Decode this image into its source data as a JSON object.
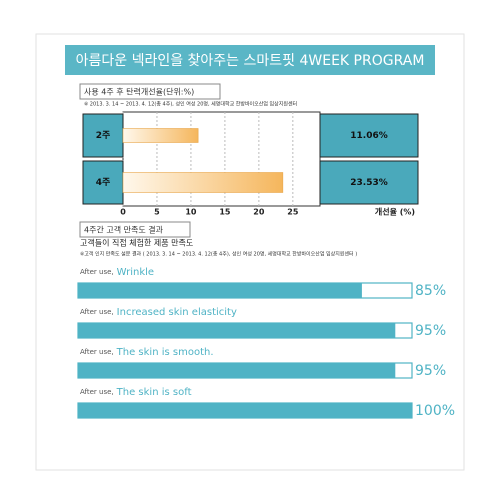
{
  "header": {
    "title": "아름다운 넥라인을 찾아주는 스마트핏 4WEEK PROGRAM"
  },
  "chart_data": [
    {
      "type": "bar",
      "orientation": "horizontal",
      "title": "사용 4주 후 탄력개선율(단위:%)",
      "note": "※ 2013. 3. 14 ~ 2013. 4. 12(총 4주), 성인 여성 20명, 세명대학교 한방바이오산업 임상지원센터",
      "categories": [
        "2주",
        "4주"
      ],
      "values": [
        11.06,
        23.53
      ],
      "value_labels": [
        "11.06%",
        "23.53%"
      ],
      "color": "#f5b65c",
      "xlim": [
        0,
        29
      ],
      "xticks": [
        0,
        5,
        10,
        15,
        20,
        25
      ],
      "xlabel": "개선율 (%)",
      "grid": true
    },
    {
      "type": "bar",
      "orientation": "horizontal",
      "title": "4주간 고객 만족도 결과",
      "subtitle": "고객들이 직접 체험한 제품 만족도",
      "note": "※고객 인지 만족도 설문 결과 ( 2013. 3. 14 ~ 2013. 4. 12(총 4주), 성인 여성 20명, 세명대학교 한방바이오산업 임상지원센터 )",
      "prefix": "After use,",
      "categories": [
        "Wrinkle",
        "Increased skin elasticity",
        "The skin is smooth.",
        "The skin is soft"
      ],
      "values": [
        85,
        95,
        95,
        100
      ],
      "value_labels": [
        "85%",
        "95%",
        "95%",
        "100%"
      ],
      "color": "#4fb3c5",
      "xlim": [
        0,
        100
      ]
    }
  ]
}
